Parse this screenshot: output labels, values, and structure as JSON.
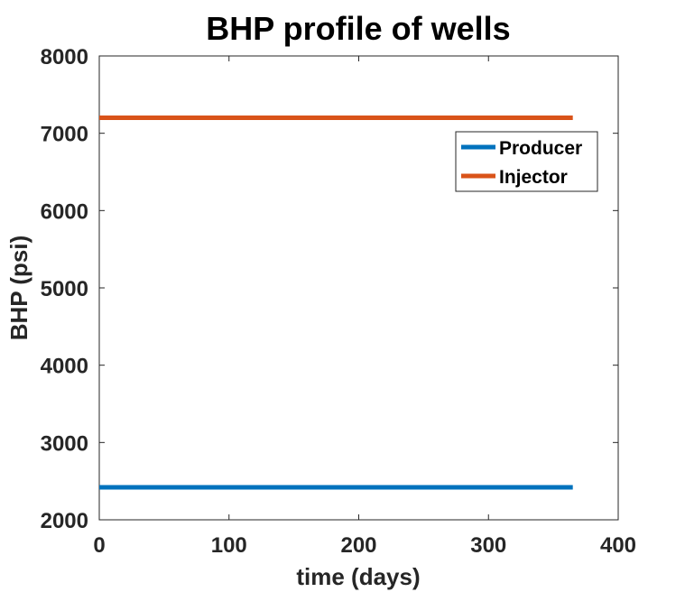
{
  "chart_data": {
    "type": "line",
    "title": "BHP profile of wells",
    "xlabel": "time (days)",
    "ylabel": "BHP (psi)",
    "xlim": [
      0,
      400
    ],
    "ylim": [
      2000,
      8000
    ],
    "xticks": [
      0,
      100,
      200,
      300,
      400
    ],
    "yticks": [
      2000,
      3000,
      4000,
      5000,
      6000,
      7000,
      8000
    ],
    "xtick_labels": [
      "0",
      "100",
      "200",
      "300",
      "400"
    ],
    "ytick_labels": [
      "2000",
      "3000",
      "4000",
      "5000",
      "6000",
      "7000",
      "8000"
    ],
    "grid": false,
    "legend_position": "top-right",
    "series": [
      {
        "name": "Producer",
        "color": "#0072BD",
        "x": [
          0,
          365
        ],
        "y": [
          2420,
          2420
        ]
      },
      {
        "name": "Injector",
        "color": "#D95319",
        "x": [
          0,
          365
        ],
        "y": [
          7200,
          7200
        ]
      }
    ]
  }
}
